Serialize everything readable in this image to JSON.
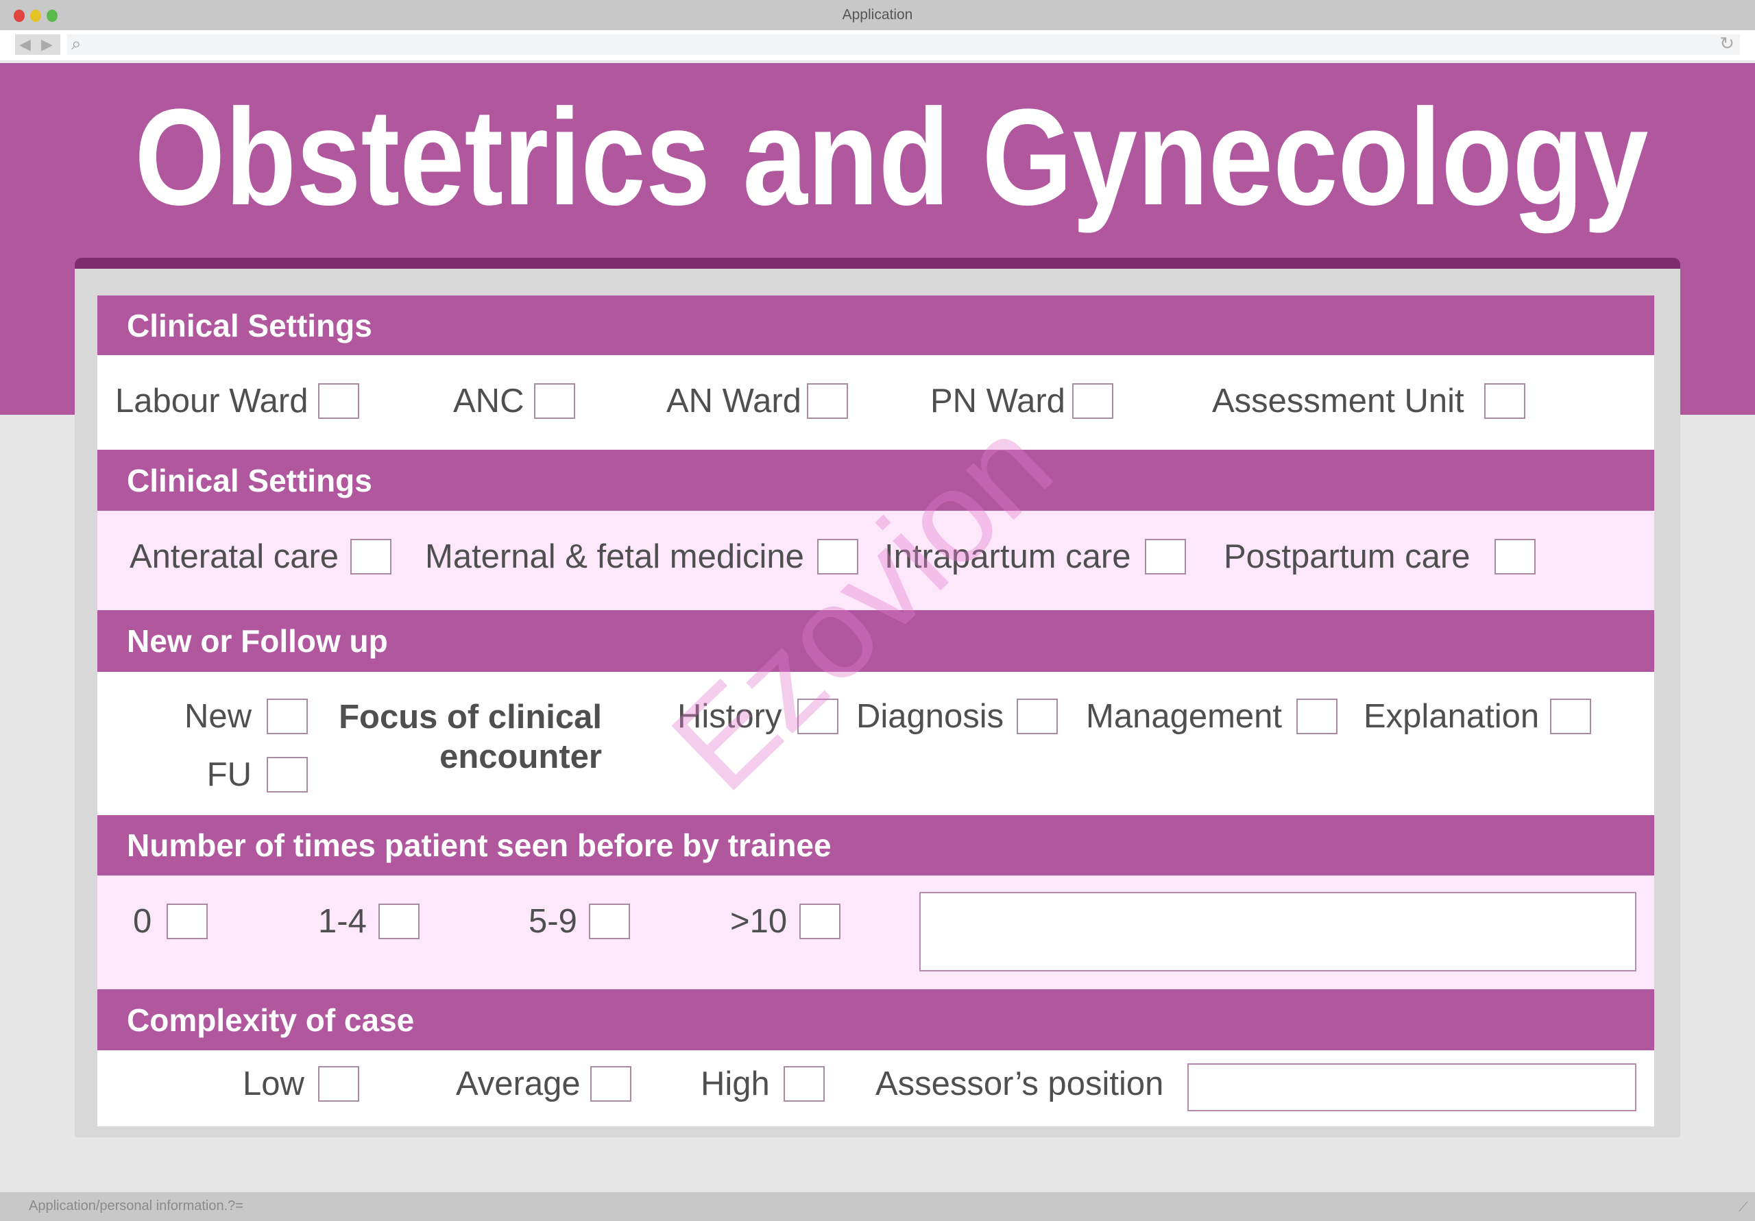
{
  "window": {
    "title": "Application",
    "status_text": "Application/personal information.?="
  },
  "colors": {
    "brand": "#b0579e",
    "brand_dark": "#7e2d6c",
    "row_tint": "#fde8fb"
  },
  "header": {
    "title": "Obstetrics and Gynecology"
  },
  "watermark": "Ezovion",
  "sections": [
    {
      "title": "Clinical Settings",
      "options": [
        "Labour Ward",
        "ANC",
        "AN Ward",
        "PN Ward",
        "Assessment Unit"
      ]
    },
    {
      "title": "Clinical Settings",
      "options": [
        "Anteratal care",
        "Maternal & fetal medicine",
        "Intrapartum care",
        "Postpartum care"
      ]
    },
    {
      "title": "New or Follow up",
      "options": [
        "New",
        "FU"
      ],
      "focus_label_1": "Focus of clinical",
      "focus_label_2": "encounter",
      "focus_options": [
        "History",
        "Diagnosis",
        "Management",
        "Explanation"
      ]
    },
    {
      "title": "Number of times patient seen before by trainee",
      "options": [
        "0",
        "1-4",
        "5-9",
        ">10"
      ],
      "notes_value": ""
    },
    {
      "title": "Complexity of case",
      "options": [
        "Low",
        "Average",
        "High"
      ],
      "assessor_label": "Assessor’s position",
      "assessor_value": ""
    }
  ]
}
